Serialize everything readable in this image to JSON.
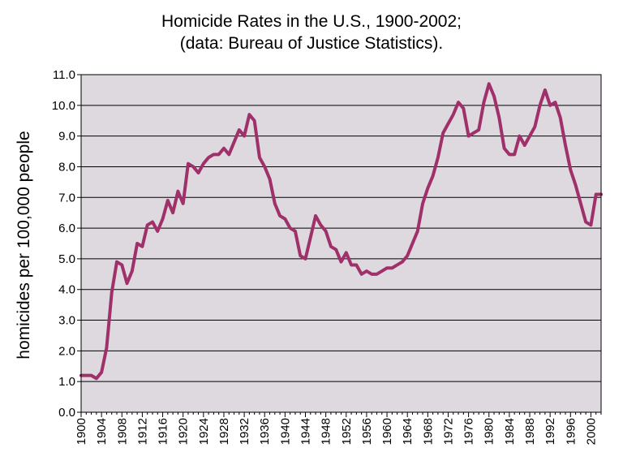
{
  "chart_data": {
    "type": "line",
    "title": "Homicide Rates in the U.S., 1900-2002;",
    "subtitle": "(data: Bureau of Justice Statistics).",
    "ylabel": "homicides per 100,000 people",
    "xlabel": "",
    "xlim": [
      1900,
      2002
    ],
    "ylim": [
      0,
      11
    ],
    "yticks": [
      "0.0",
      "1.0",
      "2.0",
      "3.0",
      "4.0",
      "5.0",
      "6.0",
      "7.0",
      "8.0",
      "9.0",
      "10.0",
      "11.0"
    ],
    "xticks": [
      "1900",
      "1904",
      "1908",
      "1912",
      "1916",
      "1920",
      "1924",
      "1928",
      "1932",
      "1936",
      "1940",
      "1944",
      "1948",
      "1952",
      "1956",
      "1960",
      "1964",
      "1968",
      "1972",
      "1976",
      "1980",
      "1984",
      "1988",
      "1992",
      "1996",
      "2000"
    ],
    "grid": true,
    "colors": {
      "line": "#a0306a",
      "plot_bg": "#ddd9de",
      "grid": "#000000"
    },
    "series": [
      {
        "name": "",
        "x": [
          1900,
          1901,
          1902,
          1903,
          1904,
          1905,
          1906,
          1907,
          1908,
          1909,
          1910,
          1911,
          1912,
          1913,
          1914,
          1915,
          1916,
          1917,
          1918,
          1919,
          1920,
          1921,
          1922,
          1923,
          1924,
          1925,
          1926,
          1927,
          1928,
          1929,
          1930,
          1931,
          1932,
          1933,
          1934,
          1935,
          1936,
          1937,
          1938,
          1939,
          1940,
          1941,
          1942,
          1943,
          1944,
          1945,
          1946,
          1947,
          1948,
          1949,
          1950,
          1951,
          1952,
          1953,
          1954,
          1955,
          1956,
          1957,
          1958,
          1959,
          1960,
          1961,
          1962,
          1963,
          1964,
          1965,
          1966,
          1967,
          1968,
          1969,
          1970,
          1971,
          1972,
          1973,
          1974,
          1975,
          1976,
          1977,
          1978,
          1979,
          1980,
          1981,
          1982,
          1983,
          1984,
          1985,
          1986,
          1987,
          1988,
          1989,
          1990,
          1991,
          1992,
          1993,
          1994,
          1995,
          1996,
          1997,
          1998,
          1999,
          2000,
          2001,
          2002
        ],
        "values": [
          1.2,
          1.2,
          1.2,
          1.1,
          1.3,
          2.1,
          3.9,
          4.9,
          4.8,
          4.2,
          4.6,
          5.5,
          5.4,
          6.1,
          6.2,
          5.9,
          6.3,
          6.9,
          6.5,
          7.2,
          6.8,
          8.1,
          8.0,
          7.8,
          8.1,
          8.3,
          8.4,
          8.4,
          8.6,
          8.4,
          8.8,
          9.2,
          9.0,
          9.7,
          9.5,
          8.3,
          8.0,
          7.6,
          6.8,
          6.4,
          6.3,
          6.0,
          5.9,
          5.1,
          5.0,
          5.7,
          6.4,
          6.1,
          5.9,
          5.4,
          5.3,
          4.9,
          5.2,
          4.8,
          4.8,
          4.5,
          4.6,
          4.5,
          4.5,
          4.6,
          4.7,
          4.7,
          4.8,
          4.9,
          5.1,
          5.5,
          5.9,
          6.8,
          7.3,
          7.7,
          8.3,
          9.1,
          9.4,
          9.7,
          10.1,
          9.9,
          9.0,
          9.1,
          9.2,
          10.1,
          10.7,
          10.3,
          9.6,
          8.6,
          8.4,
          8.4,
          9.0,
          8.7,
          9.0,
          9.3,
          10.0,
          10.5,
          10.0,
          10.1,
          9.6,
          8.7,
          7.9,
          7.4,
          6.8,
          6.2,
          6.1,
          7.1,
          7.1
        ]
      }
    ]
  }
}
